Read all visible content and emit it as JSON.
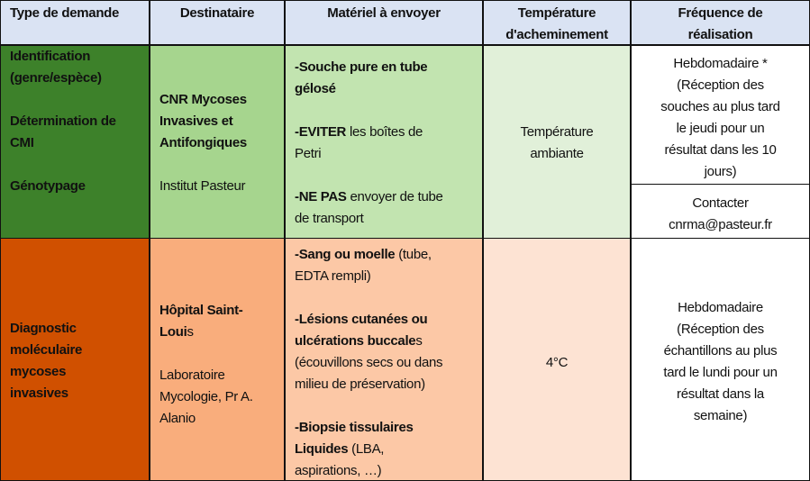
{
  "colors": {
    "header": "#dae3f3",
    "green_dark": "#3d812a",
    "green_mid": "#a6d58e",
    "green_light": "#c2e4b0",
    "green_lightest": "#e1f0d9",
    "orange_dark": "#d05000",
    "orange_mid": "#f9ad7c",
    "orange_light": "#fcc8a6",
    "orange_lightest": "#fde3d3",
    "white": "#ffffff"
  },
  "header": [
    {
      "lines": [
        [
          {
            "b": true,
            "t": "Type de demande"
          }
        ]
      ]
    },
    {
      "lines": [
        [
          {
            "b": true,
            "t": "Destinataire"
          }
        ]
      ]
    },
    {
      "lines": [
        [
          {
            "b": true,
            "t": "Matériel à envoyer"
          }
        ]
      ]
    },
    {
      "lines": [
        [
          {
            "b": true,
            "t": "Température"
          }
        ],
        [
          {
            "b": true,
            "t": "d'acheminement"
          }
        ]
      ]
    },
    {
      "lines": [
        [
          {
            "b": true,
            "t": "Fréquence de"
          }
        ],
        [
          {
            "b": true,
            "t": "réalisation"
          }
        ]
      ]
    }
  ],
  "rows": [
    {
      "type_demande": {
        "lines": [
          [
            {
              "b": true,
              "t": "Identification"
            }
          ],
          [
            {
              "b": true,
              "t": "(genre/espèce)"
            }
          ],
          [],
          [
            {
              "b": true,
              "t": "Détermination de"
            }
          ],
          [
            {
              "b": true,
              "t": "CMI"
            }
          ],
          [],
          [
            {
              "b": true,
              "t": "Génotypage"
            }
          ]
        ]
      },
      "destinataire": {
        "lines": [
          [
            {
              "b": true,
              "t": "CNR Mycoses"
            }
          ],
          [
            {
              "b": true,
              "t": "Invasives et"
            }
          ],
          [
            {
              "b": true,
              "t": "Antifongiques"
            }
          ],
          [],
          [
            {
              "b": false,
              "t": "Institut Pasteur"
            }
          ]
        ]
      },
      "materiel": {
        "lines": [
          [
            {
              "b": true,
              "t": "-Souche pure en tube"
            }
          ],
          [
            {
              "b": true,
              "t": "gélosé"
            }
          ],
          [],
          [
            {
              "b": true,
              "t": "-EVITER"
            },
            {
              "b": false,
              "t": " les boîtes de"
            }
          ],
          [
            {
              "b": false,
              "t": "Petri"
            }
          ],
          [],
          [
            {
              "b": true,
              "t": "-NE PAS"
            },
            {
              "b": false,
              "t": " envoyer de tube"
            }
          ],
          [
            {
              "b": false,
              "t": "de transport"
            }
          ]
        ]
      },
      "temperature": {
        "lines": [
          [
            {
              "b": false,
              "t": "Température"
            }
          ],
          [
            {
              "b": false,
              "t": "ambiante"
            }
          ]
        ]
      },
      "frequence": {
        "lines": [
          [
            {
              "b": false,
              "t": "Hebdomadaire *"
            }
          ],
          [
            {
              "b": false,
              "t": "(Réception des"
            }
          ],
          [
            {
              "b": false,
              "t": "souches au plus tard"
            }
          ],
          [
            {
              "b": false,
              "t": "le jeudi pour un"
            }
          ],
          [
            {
              "b": false,
              "t": "résultat dans les 10"
            }
          ],
          [
            {
              "b": false,
              "t": "jours)"
            }
          ]
        ]
      },
      "contact": {
        "lines": [
          [
            {
              "b": false,
              "t": "Contacter"
            }
          ],
          [
            {
              "b": false,
              "t": "cnrma@pasteur.fr"
            }
          ]
        ]
      }
    },
    {
      "type_demande": {
        "lines": [
          [
            {
              "b": true,
              "t": "Diagnostic"
            }
          ],
          [
            {
              "b": true,
              "t": "moléculaire"
            }
          ],
          [
            {
              "b": true,
              "t": "mycoses"
            }
          ],
          [
            {
              "b": true,
              "t": "invasives"
            }
          ]
        ]
      },
      "destinataire": {
        "lines": [
          [
            {
              "b": true,
              "t": "Hôpital Saint-"
            }
          ],
          [
            {
              "b": true,
              "t": "Loui"
            },
            {
              "b": false,
              "t": "s"
            }
          ],
          [],
          [
            {
              "b": false,
              "t": " Laboratoire"
            }
          ],
          [
            {
              "b": false,
              "t": "Mycologie, Pr A."
            }
          ],
          [
            {
              "b": false,
              "t": "Alanio"
            }
          ]
        ]
      },
      "materiel": {
        "lines": [
          [
            {
              "b": true,
              "t": "-Sang ou moelle"
            },
            {
              "b": false,
              "t": " (tube,"
            }
          ],
          [
            {
              "b": false,
              "t": "EDTA rempli)"
            }
          ],
          [],
          [
            {
              "b": true,
              "t": "-Lésions cutanées ou"
            }
          ],
          [
            {
              "b": true,
              "t": "ulcérations buccale"
            },
            {
              "b": false,
              "t": "s"
            }
          ],
          [
            {
              "b": false,
              "t": "(écouvillons secs ou dans"
            }
          ],
          [
            {
              "b": false,
              "t": "milieu de préservation)"
            }
          ],
          [],
          [
            {
              "b": true,
              "t": "-Biopsie tissulaires"
            }
          ],
          [
            {
              "b": true,
              "t": "Liquides"
            },
            {
              "b": false,
              "t": " (LBA,"
            }
          ],
          [
            {
              "b": false,
              "t": "aspirations, …)"
            }
          ]
        ]
      },
      "temperature": {
        "lines": [
          [
            {
              "b": false,
              "t": "4°C"
            }
          ]
        ]
      },
      "frequence": {
        "lines": [
          [
            {
              "b": false,
              "t": "Hebdomadaire"
            }
          ],
          [
            {
              "b": false,
              "t": "(Réception des"
            }
          ],
          [
            {
              "b": false,
              "t": "échantillons au plus"
            }
          ],
          [
            {
              "b": false,
              "t": "tard le lundi pour un"
            }
          ],
          [
            {
              "b": false,
              "t": "résultat dans la"
            }
          ],
          [
            {
              "b": false,
              "t": "semaine)"
            }
          ]
        ]
      }
    }
  ]
}
